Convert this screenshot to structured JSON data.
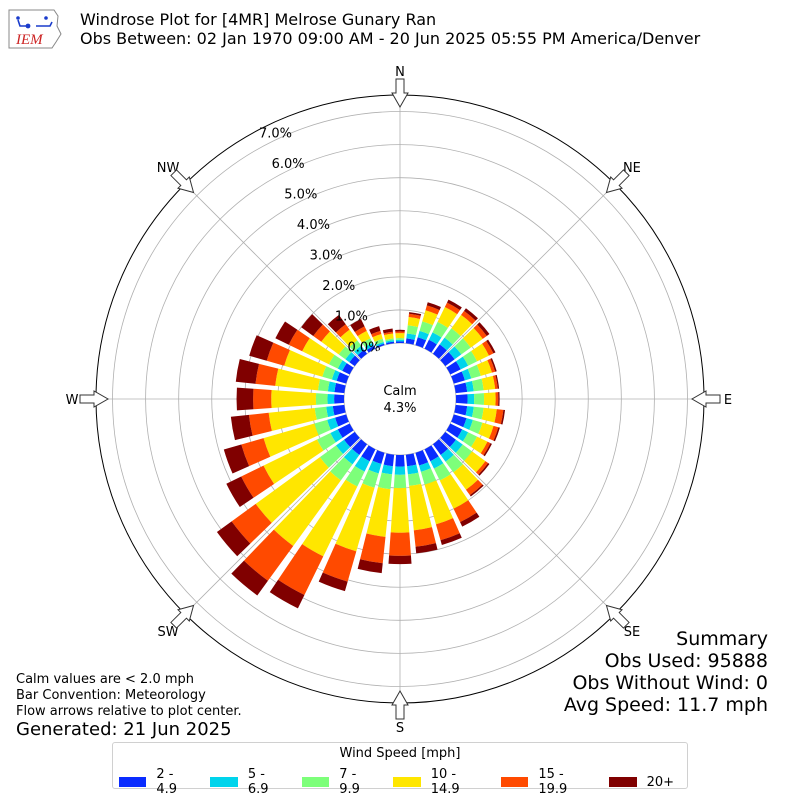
{
  "header": {
    "logo_text": "IEM",
    "title": "Windrose Plot for [4MR] Melrose Gunary Ran",
    "subtitle": "Obs Between: 02 Jan 1970 09:00 AM - 20 Jun 2025 05:55 PM America/Denver"
  },
  "notes": {
    "calm_note": "Calm values are < 2.0 mph",
    "bar_convention": "Bar Convention: Meteorology",
    "flow_arrows": "Flow arrows relative to plot center.",
    "generated": "Generated: 21 Jun 2025"
  },
  "summary": {
    "heading": "Summary",
    "obs_used": "Obs Used: 95888",
    "obs_without_wind": "Obs Without Wind: 0",
    "avg_speed": "Avg Speed: 11.7 mph"
  },
  "legend": {
    "title": "Wind Speed [mph]",
    "items": [
      {
        "label": "2 - 4.9",
        "color": "#0a2cff"
      },
      {
        "label": "5 - 6.9",
        "color": "#00d4ec"
      },
      {
        "label": "7 - 9.9",
        "color": "#7dff7a"
      },
      {
        "label": "10 - 14.9",
        "color": "#ffe600"
      },
      {
        "label": "15 - 19.9",
        "color": "#ff4a00"
      },
      {
        "label": "20+",
        "color": "#800000"
      }
    ]
  },
  "chart_data": {
    "type": "windrose",
    "calm_label": "Calm",
    "calm_value": "4.3%",
    "directions": [
      "N",
      "NE",
      "E",
      "SE",
      "S",
      "SW",
      "W",
      "NW"
    ],
    "radial_ticks": [
      "0.0%",
      "1.0%",
      "2.0%",
      "3.0%",
      "4.0%",
      "5.0%",
      "6.0%",
      "7.0%"
    ],
    "radial_range": [
      0,
      7.5
    ],
    "sector_count": 36,
    "sector_angles_deg": [
      0,
      10,
      20,
      30,
      40,
      50,
      60,
      70,
      80,
      90,
      100,
      110,
      120,
      130,
      140,
      150,
      160,
      170,
      180,
      190,
      200,
      210,
      220,
      230,
      240,
      250,
      260,
      270,
      280,
      290,
      300,
      310,
      320,
      330,
      340,
      350
    ],
    "bins": [
      "2 - 4.9",
      "5 - 6.9",
      "7 - 9.9",
      "10 - 14.9",
      "15 - 19.9",
      "20+"
    ],
    "cumulative_percent": [
      [
        0.05,
        0.1,
        0.15,
        0.3,
        0.35,
        0.4
      ],
      [
        0.15,
        0.3,
        0.55,
        0.8,
        0.9,
        0.95
      ],
      [
        0.25,
        0.45,
        0.75,
        1.1,
        1.25,
        1.35
      ],
      [
        0.3,
        0.55,
        0.9,
        1.4,
        1.55,
        1.65
      ],
      [
        0.35,
        0.6,
        0.95,
        1.45,
        1.6,
        1.7
      ],
      [
        0.35,
        0.6,
        0.95,
        1.4,
        1.55,
        1.65
      ],
      [
        0.35,
        0.6,
        0.9,
        1.3,
        1.45,
        1.52
      ],
      [
        0.35,
        0.55,
        0.85,
        1.2,
        1.3,
        1.35
      ],
      [
        0.35,
        0.55,
        0.85,
        1.2,
        1.28,
        1.32
      ],
      [
        0.35,
        0.55,
        0.85,
        1.2,
        1.28,
        1.32
      ],
      [
        0.35,
        0.55,
        0.85,
        1.25,
        1.45,
        1.5
      ],
      [
        0.4,
        0.6,
        0.9,
        1.25,
        1.4,
        1.45
      ],
      [
        0.4,
        0.6,
        0.9,
        1.25,
        1.35,
        1.4
      ],
      [
        0.4,
        0.65,
        1.0,
        1.5,
        1.6,
        1.65
      ],
      [
        0.4,
        0.65,
        1.05,
        1.7,
        1.9,
        1.95
      ],
      [
        0.4,
        0.65,
        1.05,
        2.0,
        2.45,
        2.6
      ],
      [
        0.4,
        0.6,
        1.0,
        2.25,
        2.75,
        2.9
      ],
      [
        0.35,
        0.6,
        0.95,
        2.3,
        2.8,
        3.0
      ],
      [
        0.35,
        0.6,
        1.0,
        2.35,
        3.05,
        3.3
      ],
      [
        0.35,
        0.6,
        1.05,
        2.5,
        3.3,
        3.6
      ],
      [
        0.35,
        0.65,
        1.1,
        3.1,
        4.05,
        4.35
      ],
      [
        0.4,
        0.75,
        1.25,
        3.6,
        4.9,
        5.35
      ],
      [
        0.4,
        0.75,
        1.35,
        3.8,
        5.1,
        5.65
      ],
      [
        0.4,
        0.7,
        1.3,
        3.7,
        4.6,
        5.15
      ],
      [
        0.4,
        0.65,
        1.1,
        2.9,
        3.65,
        4.15
      ],
      [
        0.35,
        0.6,
        1.0,
        2.6,
        3.3,
        3.85
      ],
      [
        0.35,
        0.55,
        0.9,
        2.3,
        2.9,
        3.45
      ],
      [
        0.3,
        0.5,
        0.85,
        2.2,
        2.75,
        3.25
      ],
      [
        0.3,
        0.5,
        0.8,
        2.1,
        2.7,
        3.3
      ],
      [
        0.3,
        0.45,
        0.75,
        1.95,
        2.5,
        3.05
      ],
      [
        0.25,
        0.4,
        0.7,
        1.6,
        2.05,
        2.5
      ],
      [
        0.2,
        0.35,
        0.6,
        1.25,
        1.55,
        2.0
      ],
      [
        0.15,
        0.3,
        0.5,
        0.9,
        1.1,
        1.45
      ],
      [
        0.1,
        0.2,
        0.35,
        0.6,
        0.75,
        1.0
      ],
      [
        0.05,
        0.1,
        0.2,
        0.35,
        0.45,
        0.6
      ],
      [
        0.05,
        0.1,
        0.15,
        0.3,
        0.35,
        0.45
      ]
    ]
  }
}
